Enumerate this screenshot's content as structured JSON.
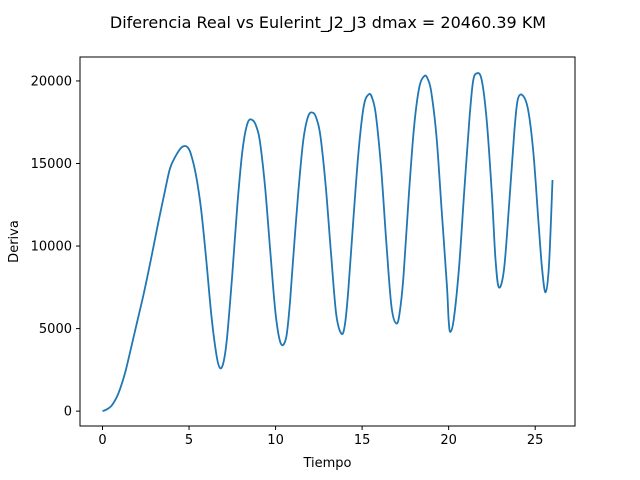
{
  "chart_data": {
    "type": "line",
    "title": "Diferencia Real vs Eulerint_J2_J3 dmax = 20460.39 KM",
    "xlabel": "Tiempo",
    "ylabel": "Deriva",
    "xlim": [
      -1.3,
      27.3
    ],
    "ylim": [
      -900,
      21450
    ],
    "xticks": [
      0,
      5,
      10,
      15,
      20,
      25
    ],
    "yticks": [
      0,
      5000,
      10000,
      15000,
      20000
    ],
    "grid": false,
    "legend": "none",
    "colors": {
      "line": "#1f77b4"
    },
    "series": [
      {
        "x": [
          0,
          0.2,
          0.5,
          0.8,
          1.0,
          1.3,
          1.6,
          2.0,
          2.4,
          2.8,
          3.2,
          3.6,
          3.9,
          4.2,
          4.5,
          4.7,
          4.9,
          5.1,
          5.4,
          5.7,
          6.0,
          6.3,
          6.6,
          6.8,
          7.0,
          7.2,
          7.5,
          7.8,
          8.1,
          8.4,
          8.7,
          8.9,
          9.1,
          9.4,
          9.7,
          10.0,
          10.3,
          10.6,
          10.8,
          11.0,
          11.3,
          11.6,
          11.9,
          12.2,
          12.4,
          12.6,
          12.9,
          13.2,
          13.5,
          13.8,
          14.0,
          14.2,
          14.5,
          14.8,
          15.1,
          15.4,
          15.6,
          15.8,
          16.1,
          16.4,
          16.7,
          17.0,
          17.2,
          17.4,
          17.7,
          18.0,
          18.3,
          18.6,
          18.8,
          19.0,
          19.3,
          19.6,
          19.9,
          20.0,
          20.1,
          20.3,
          20.6,
          20.9,
          21.2,
          21.4,
          21.6,
          21.9,
          22.2,
          22.5,
          22.7,
          22.9,
          23.2,
          23.5,
          23.8,
          24.0,
          24.3,
          24.6,
          24.9,
          25.2,
          25.4,
          25.6,
          25.8,
          26.0
        ],
        "values": [
          0,
          80,
          300,
          800,
          1300,
          2300,
          3600,
          5400,
          7200,
          9200,
          11300,
          13300,
          14700,
          15400,
          15900,
          16050,
          16000,
          15600,
          14300,
          12200,
          9100,
          5700,
          3300,
          2600,
          3000,
          4500,
          8300,
          12600,
          15900,
          17500,
          17600,
          17200,
          16300,
          13500,
          9600,
          5900,
          4100,
          4400,
          6200,
          9000,
          13100,
          16400,
          17900,
          18050,
          17600,
          16600,
          13600,
          9600,
          5900,
          4700,
          5200,
          7300,
          11700,
          15800,
          18500,
          19200,
          18900,
          17900,
          14700,
          10200,
          6300,
          5300,
          6200,
          8300,
          13100,
          17200,
          19600,
          20300,
          20100,
          19300,
          16600,
          12100,
          7600,
          5500,
          4800,
          5600,
          8700,
          13300,
          17700,
          19900,
          20450,
          20100,
          17600,
          13100,
          9300,
          7500,
          8600,
          12600,
          17000,
          18900,
          19100,
          18200,
          15600,
          11300,
          8600,
          7200,
          8900,
          14000
        ]
      }
    ]
  }
}
